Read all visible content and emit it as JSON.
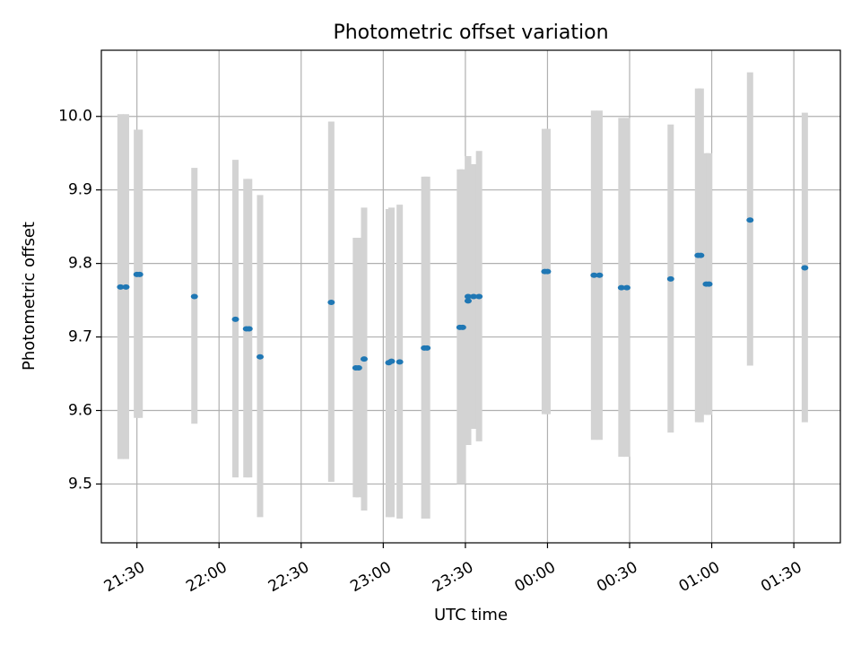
{
  "chart_data": {
    "type": "scatter",
    "title": "Photometric offset variation",
    "xlabel": "UTC time",
    "ylabel": "Photometric offset",
    "xlim": [
      "21:17",
      "01:47"
    ],
    "ylim": [
      9.42,
      10.09
    ],
    "grid": true,
    "x_ticks": [
      "21:30",
      "22:00",
      "22:30",
      "23:00",
      "23:30",
      "00:00",
      "00:30",
      "01:00",
      "01:30"
    ],
    "y_ticks": [
      9.5,
      9.6,
      9.7,
      9.8,
      9.9,
      10.0
    ],
    "point_color": "#1f77b4",
    "errorbar_color": "#d3d3d3",
    "points": [
      {
        "t": "21:24",
        "y": 9.768,
        "lo": 9.534,
        "hi": 10.003
      },
      {
        "t": "21:26",
        "y": 9.768,
        "lo": 9.534,
        "hi": 10.003
      },
      {
        "t": "21:30",
        "y": 9.785,
        "lo": 9.59,
        "hi": 9.982
      },
      {
        "t": "21:31",
        "y": 9.785,
        "lo": 9.59,
        "hi": 9.982
      },
      {
        "t": "21:51",
        "y": 9.755,
        "lo": 9.582,
        "hi": 9.93
      },
      {
        "t": "22:06",
        "y": 9.724,
        "lo": 9.509,
        "hi": 9.941
      },
      {
        "t": "22:10",
        "y": 9.711,
        "lo": 9.509,
        "hi": 9.915
      },
      {
        "t": "22:11",
        "y": 9.711,
        "lo": 9.509,
        "hi": 9.915
      },
      {
        "t": "22:15",
        "y": 9.673,
        "lo": 9.455,
        "hi": 9.893
      },
      {
        "t": "22:41",
        "y": 9.747,
        "lo": 9.503,
        "hi": 9.993
      },
      {
        "t": "22:50",
        "y": 9.658,
        "lo": 9.482,
        "hi": 9.835
      },
      {
        "t": "22:51",
        "y": 9.658,
        "lo": 9.482,
        "hi": 9.835
      },
      {
        "t": "22:53",
        "y": 9.67,
        "lo": 9.464,
        "hi": 9.876
      },
      {
        "t": "23:02",
        "y": 9.665,
        "lo": 9.455,
        "hi": 9.874
      },
      {
        "t": "23:03",
        "y": 9.667,
        "lo": 9.455,
        "hi": 9.876
      },
      {
        "t": "23:06",
        "y": 9.666,
        "lo": 9.453,
        "hi": 9.88
      },
      {
        "t": "23:15",
        "y": 9.685,
        "lo": 9.453,
        "hi": 9.918
      },
      {
        "t": "23:16",
        "y": 9.685,
        "lo": 9.453,
        "hi": 9.918
      },
      {
        "t": "23:28",
        "y": 9.713,
        "lo": 9.5,
        "hi": 9.928
      },
      {
        "t": "23:29",
        "y": 9.713,
        "lo": 9.5,
        "hi": 9.928
      },
      {
        "t": "23:31",
        "y": 9.749,
        "lo": 9.553,
        "hi": 9.946
      },
      {
        "t": "23:31",
        "y": 9.755,
        "lo": 9.553,
        "hi": 9.946
      },
      {
        "t": "23:33",
        "y": 9.755,
        "lo": 9.575,
        "hi": 9.935
      },
      {
        "t": "23:35",
        "y": 9.755,
        "lo": 9.558,
        "hi": 9.953
      },
      {
        "t": "23:59",
        "y": 9.789,
        "lo": 9.595,
        "hi": 9.983
      },
      {
        "t": "00:00",
        "y": 9.789,
        "lo": 9.595,
        "hi": 9.983
      },
      {
        "t": "00:17",
        "y": 9.784,
        "lo": 9.56,
        "hi": 10.008
      },
      {
        "t": "00:19",
        "y": 9.784,
        "lo": 9.56,
        "hi": 10.008
      },
      {
        "t": "00:27",
        "y": 9.767,
        "lo": 9.537,
        "hi": 9.998
      },
      {
        "t": "00:29",
        "y": 9.767,
        "lo": 9.537,
        "hi": 9.998
      },
      {
        "t": "00:45",
        "y": 9.779,
        "lo": 9.57,
        "hi": 9.989
      },
      {
        "t": "00:55",
        "y": 9.811,
        "lo": 9.584,
        "hi": 10.038
      },
      {
        "t": "00:56",
        "y": 9.811,
        "lo": 9.584,
        "hi": 10.038
      },
      {
        "t": "00:58",
        "y": 9.772,
        "lo": 9.594,
        "hi": 9.95
      },
      {
        "t": "00:59",
        "y": 9.772,
        "lo": 9.594,
        "hi": 9.95
      },
      {
        "t": "01:14",
        "y": 9.859,
        "lo": 9.661,
        "hi": 10.06
      },
      {
        "t": "01:34",
        "y": 9.794,
        "lo": 9.584,
        "hi": 10.005
      }
    ]
  }
}
